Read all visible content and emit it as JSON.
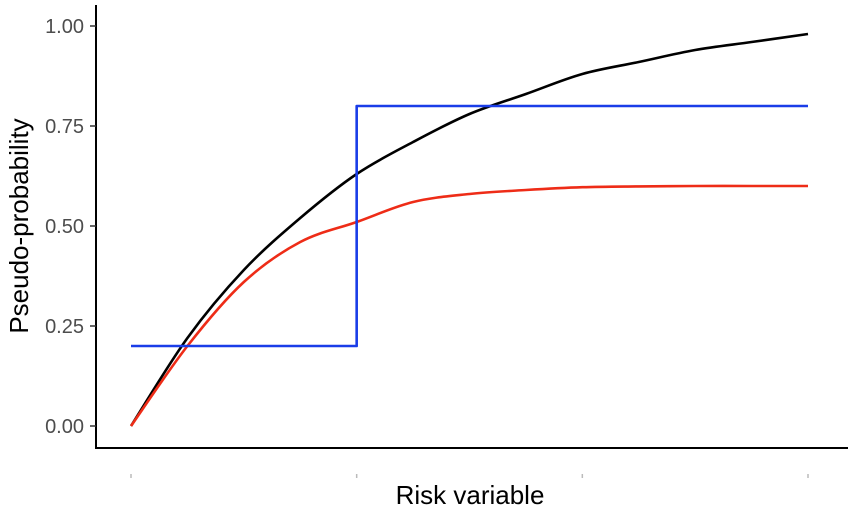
{
  "chart_data": {
    "type": "line",
    "title": "",
    "xlabel": "Risk variable",
    "ylabel": "Pseudo-probability",
    "xlim": [
      0,
      3
    ],
    "ylim": [
      0,
      1
    ],
    "x_ticks": [
      0,
      1,
      2,
      3
    ],
    "y_ticks": [
      {
        "value": 0,
        "label": "0.00"
      },
      {
        "value": 0.25,
        "label": "0.25"
      },
      {
        "value": 0.5,
        "label": "0.50"
      },
      {
        "value": 0.75,
        "label": "0.75"
      },
      {
        "value": 1,
        "label": "1.00"
      }
    ],
    "grid": false,
    "legend": "none",
    "series": [
      {
        "color": "#000000",
        "points": [
          [
            0,
            0
          ],
          [
            0.25,
            0.22
          ],
          [
            0.5,
            0.39
          ],
          [
            0.75,
            0.52
          ],
          [
            1,
            0.63
          ],
          [
            1.25,
            0.71
          ],
          [
            1.5,
            0.78
          ],
          [
            1.75,
            0.83
          ],
          [
            2,
            0.88
          ],
          [
            2.25,
            0.91
          ],
          [
            2.5,
            0.94
          ],
          [
            2.75,
            0.96
          ],
          [
            3,
            0.98
          ]
        ]
      },
      {
        "color": "#ee2c17",
        "points": [
          [
            0,
            0
          ],
          [
            0.25,
            0.2
          ],
          [
            0.5,
            0.36
          ],
          [
            0.75,
            0.46
          ],
          [
            1,
            0.51
          ],
          [
            1.25,
            0.56
          ],
          [
            1.5,
            0.58
          ],
          [
            1.75,
            0.59
          ],
          [
            2,
            0.597
          ],
          [
            2.25,
            0.599
          ],
          [
            2.5,
            0.6
          ],
          [
            2.75,
            0.6
          ],
          [
            3,
            0.6
          ]
        ]
      },
      {
        "color": "#1a3de8",
        "points": [
          [
            0,
            0.2
          ],
          [
            1,
            0.2
          ],
          [
            1,
            0.8
          ],
          [
            3,
            0.8
          ]
        ]
      }
    ]
  }
}
